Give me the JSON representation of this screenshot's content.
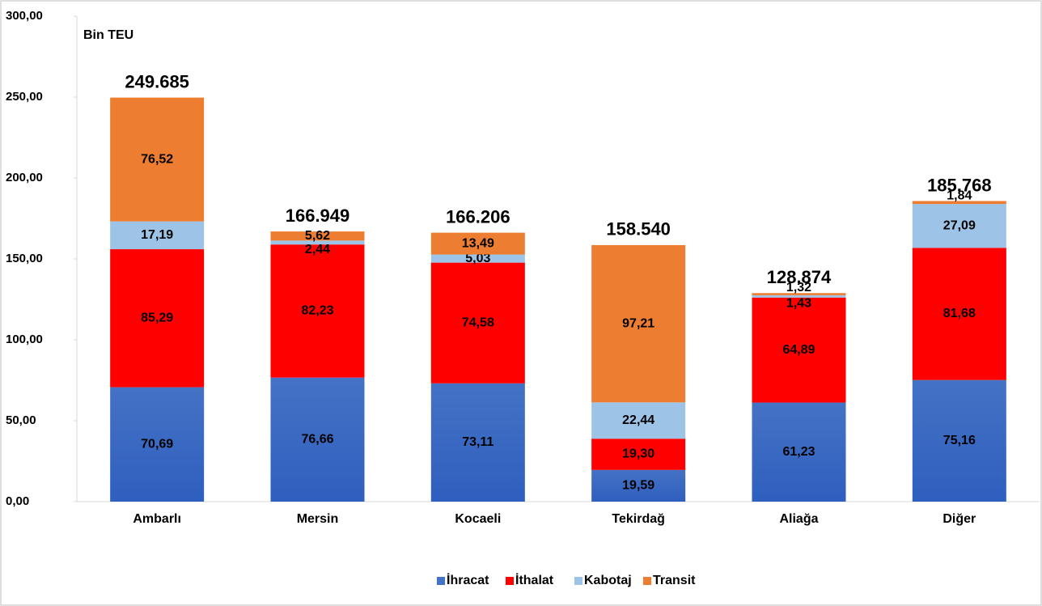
{
  "chart_data": {
    "type": "stacked_bar",
    "y_axis_label": "Bin TEU",
    "categories": [
      "Ambarlı",
      "Mersin",
      "Kocaeli",
      "Tekirdağ",
      "Aliağa",
      "Diğer"
    ],
    "series": [
      {
        "name": "İhracat",
        "color": "#4472c4",
        "values": [
          70.69,
          76.66,
          73.11,
          19.59,
          61.23,
          75.16
        ],
        "value_labels": [
          "70,69",
          "76,66",
          "73,11",
          "19,59",
          "61,23",
          "75,16"
        ]
      },
      {
        "name": "İthalat",
        "color": "#ff0000",
        "values": [
          85.29,
          82.23,
          74.58,
          19.3,
          64.89,
          81.68
        ],
        "value_labels": [
          "85,29",
          "82,23",
          "74,58",
          "19,30",
          "64,89",
          "81,68"
        ]
      },
      {
        "name": "Kabotaj",
        "color": "#9dc3e6",
        "values": [
          17.19,
          2.44,
          5.03,
          22.44,
          1.43,
          27.09
        ],
        "value_labels": [
          "17,19",
          "2,44",
          "5,03",
          "22,44",
          "1,43",
          "27,09"
        ]
      },
      {
        "name": "Transit",
        "color": "#ed7d31",
        "values": [
          76.52,
          5.62,
          13.49,
          97.21,
          1.32,
          1.84
        ],
        "value_labels": [
          "76,52",
          "5,62",
          "13,49",
          "97,21",
          "1,32",
          "1,84"
        ]
      }
    ],
    "totals": {
      "values": [
        249.685,
        166.949,
        166.206,
        158.54,
        128.874,
        185.768
      ],
      "value_labels": [
        "249.685",
        "166.949",
        "166.206",
        "158.540",
        "128.874",
        "185.768"
      ]
    },
    "ylim": [
      0,
      300
    ],
    "yticks": [
      {
        "value": 0,
        "label": "0,00"
      },
      {
        "value": 50,
        "label": "50,00"
      },
      {
        "value": 100,
        "label": "100,00"
      },
      {
        "value": 150,
        "label": "150,00"
      },
      {
        "value": 200,
        "label": "200,00"
      },
      {
        "value": 250,
        "label": "250,00"
      },
      {
        "value": 300,
        "label": "300,00"
      }
    ],
    "legend": "bottom"
  }
}
